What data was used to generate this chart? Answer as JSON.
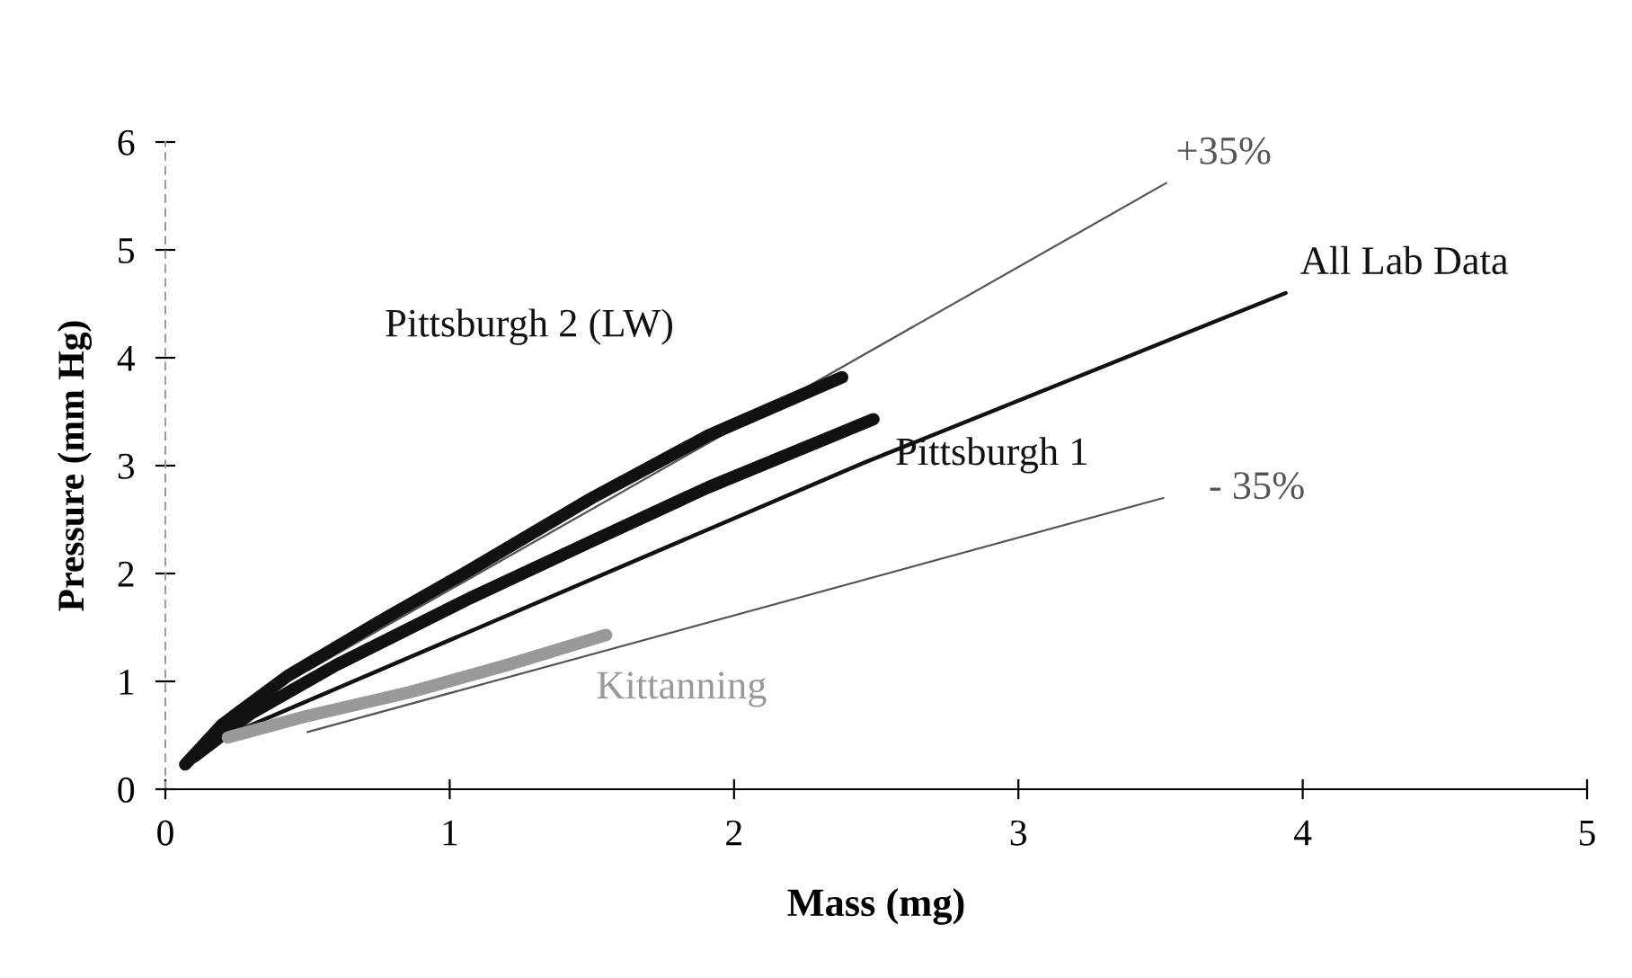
{
  "chart_data": {
    "type": "line",
    "xlabel": "Mass (mg)",
    "ylabel": "Pressure (mm Hg)",
    "xlim": [
      0,
      5
    ],
    "ylim": [
      0,
      6
    ],
    "xticks": [
      0,
      1,
      2,
      3,
      4,
      5
    ],
    "yticks": [
      0,
      1,
      2,
      3,
      4,
      5,
      6
    ],
    "grid": false,
    "legend": false,
    "marker": "none",
    "line_style": "solid",
    "series": [
      {
        "name": "+35%",
        "color": "#555555",
        "x": [
          0.5,
          3.52
        ],
        "values": [
          1.1,
          5.62
        ]
      },
      {
        "name": "All Lab Data",
        "color": "#111111",
        "x": [
          0.2,
          2.46,
          3.94
        ],
        "values": [
          0.48,
          3.03,
          4.6
        ]
      },
      {
        "name": "- 35%",
        "color": "#555555",
        "x": [
          0.5,
          3.51
        ],
        "values": [
          0.53,
          2.7
        ]
      },
      {
        "name": "Pittsburgh 2 (LW)",
        "color": "#111111",
        "x": [
          0.07,
          0.2,
          0.43,
          0.75,
          1.07,
          1.5,
          1.91,
          2.38
        ],
        "values": [
          0.23,
          0.6,
          1.05,
          1.55,
          2.03,
          2.7,
          3.28,
          3.82
        ]
      },
      {
        "name": "Pittsburgh 1",
        "color": "#111111",
        "x": [
          0.1,
          0.3,
          0.6,
          1.07,
          1.5,
          1.91,
          2.49
        ],
        "values": [
          0.3,
          0.7,
          1.15,
          1.77,
          2.3,
          2.8,
          3.43
        ]
      },
      {
        "name": "Kittanning",
        "color": "#999999",
        "x": [
          0.22,
          0.5,
          0.86,
          1.2,
          1.55
        ],
        "values": [
          0.48,
          0.68,
          0.9,
          1.15,
          1.43
        ]
      }
    ]
  }
}
